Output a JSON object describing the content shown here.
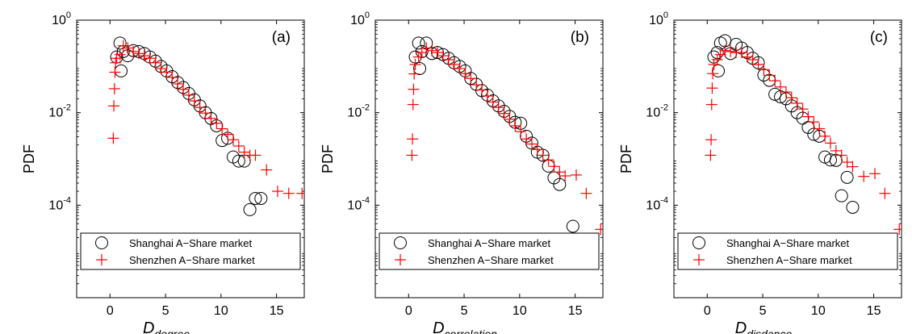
{
  "chart_data": [
    {
      "type": "scatter",
      "panel_label": "(a)",
      "ylabel": "PDF",
      "xlabel_main": "D",
      "xlabel_sub": "degree",
      "xlim": [
        -3,
        17.5
      ],
      "ylim_log10": [
        -6,
        0
      ],
      "log_y": true,
      "x_ticks": [
        "0",
        "5",
        "10",
        "15"
      ],
      "y_ticks": [
        {
          "base": "10",
          "exp": "0"
        },
        {
          "base": "10",
          "exp": "-2"
        },
        {
          "base": "10",
          "exp": "-4"
        }
      ],
      "legend": [
        "Shanghai A−Share market",
        "Shenzhen A−Share market"
      ],
      "series": [
        {
          "name": "Shanghai A−Share market",
          "marker": "circle",
          "color": "#000000",
          "x": [
            0.6,
            0.9,
            1.2,
            1.6,
            2.1,
            2.6,
            3.1,
            3.6,
            4.1,
            4.6,
            5.1,
            5.6,
            6.1,
            6.6,
            7.1,
            7.6,
            8.1,
            8.6,
            9.1,
            9.6,
            10.1,
            10.6,
            11.1,
            11.6,
            12.1,
            12.6,
            13.1,
            13.6,
            1.0
          ],
          "y": [
            0.16,
            0.32,
            0.21,
            0.17,
            0.22,
            0.21,
            0.19,
            0.16,
            0.13,
            0.1,
            0.08,
            0.06,
            0.045,
            0.035,
            0.026,
            0.019,
            0.014,
            0.01,
            0.0075,
            0.0052,
            0.0025,
            0.0028,
            0.0011,
            0.0009,
            0.0009,
            8e-05,
            0.00014,
            0.00014,
            0.08
          ]
        },
        {
          "name": "Shenzhen A−Share market",
          "marker": "plus",
          "color": "#ff0000",
          "x": [
            0.3,
            0.35,
            0.4,
            0.45,
            0.5,
            0.6,
            0.9,
            1.2,
            1.6,
            2.1,
            2.6,
            3.1,
            3.6,
            4.1,
            4.6,
            5.1,
            5.6,
            6.1,
            6.6,
            7.1,
            7.6,
            8.1,
            8.6,
            9.1,
            9.6,
            10.1,
            10.6,
            11.1,
            11.6,
            12.1,
            12.6,
            13.1,
            14.1,
            15.1,
            16.1,
            17.3
          ],
          "y": [
            0.0028,
            0.014,
            0.033,
            0.075,
            0.12,
            0.15,
            0.18,
            0.28,
            0.25,
            0.21,
            0.19,
            0.17,
            0.15,
            0.12,
            0.09,
            0.075,
            0.058,
            0.042,
            0.032,
            0.024,
            0.018,
            0.013,
            0.0098,
            0.0075,
            0.0059,
            0.0045,
            0.0034,
            0.0026,
            0.0019,
            0.0014,
            0.0012,
            0.0012,
            0.00058,
            0.0002,
            0.00018,
            0.00018
          ]
        }
      ]
    },
    {
      "type": "scatter",
      "panel_label": "(b)",
      "ylabel": "PDF",
      "xlabel_main": "D",
      "xlabel_sub": "correlation",
      "xlim": [
        -3,
        17.5
      ],
      "ylim_log10": [
        -6,
        0
      ],
      "log_y": true,
      "x_ticks": [
        "0",
        "5",
        "10",
        "15"
      ],
      "y_ticks": [
        {
          "base": "10",
          "exp": "0"
        },
        {
          "base": "10",
          "exp": "-2"
        },
        {
          "base": "10",
          "exp": "-4"
        }
      ],
      "legend": [
        "Shanghai A−Share market",
        "Shenzhen A−Share market"
      ],
      "series": [
        {
          "name": "Shanghai A−Share market",
          "marker": "circle",
          "color": "#000000",
          "x": [
            0.6,
            0.9,
            1.2,
            1.6,
            2.1,
            2.6,
            3.1,
            3.6,
            4.1,
            4.6,
            5.1,
            5.6,
            6.1,
            6.6,
            7.1,
            7.6,
            8.1,
            8.6,
            9.1,
            9.6,
            10.1,
            10.6,
            11.1,
            11.6,
            12.1,
            12.6,
            13.1,
            13.6,
            14.8,
            1.0
          ],
          "y": [
            0.16,
            0.32,
            0.21,
            0.32,
            0.19,
            0.2,
            0.18,
            0.15,
            0.12,
            0.1,
            0.08,
            0.055,
            0.041,
            0.03,
            0.024,
            0.018,
            0.014,
            0.0107,
            0.0083,
            0.0062,
            0.0059,
            0.0031,
            0.0022,
            0.0014,
            0.0012,
            0.0007,
            0.00039,
            0.00028,
            3.5e-05,
            0.09
          ]
        },
        {
          "name": "Shenzhen A−Share market",
          "marker": "plus",
          "color": "#ff0000",
          "x": [
            0.3,
            0.35,
            0.4,
            0.45,
            0.5,
            0.6,
            0.9,
            1.2,
            1.6,
            2.1,
            2.6,
            3.1,
            3.6,
            4.1,
            4.6,
            5.1,
            5.6,
            6.1,
            6.6,
            7.1,
            7.6,
            8.1,
            8.6,
            9.1,
            9.6,
            10.1,
            10.6,
            11.1,
            11.6,
            12.1,
            12.6,
            13.1,
            13.6,
            14.1,
            15.1,
            16.0,
            17.3
          ],
          "y": [
            0.0012,
            0.0027,
            0.015,
            0.032,
            0.069,
            0.11,
            0.16,
            0.2,
            0.25,
            0.22,
            0.2,
            0.17,
            0.14,
            0.11,
            0.09,
            0.07,
            0.055,
            0.04,
            0.031,
            0.023,
            0.017,
            0.013,
            0.0096,
            0.0072,
            0.0052,
            0.0039,
            0.0027,
            0.0021,
            0.0016,
            0.0012,
            0.00095,
            0.00069,
            0.00052,
            0.00043,
            0.00045,
            0.00018,
            3e-05
          ]
        }
      ]
    },
    {
      "type": "scatter",
      "panel_label": "(c)",
      "ylabel": "PDF",
      "xlabel_main": "D",
      "xlabel_sub": "disdance",
      "xlim": [
        -3,
        17.5
      ],
      "ylim_log10": [
        -6,
        0
      ],
      "log_y": true,
      "x_ticks": [
        "0",
        "5",
        "10",
        "15"
      ],
      "y_ticks": [
        {
          "base": "10",
          "exp": "0"
        },
        {
          "base": "10",
          "exp": "-2"
        },
        {
          "base": "10",
          "exp": "-4"
        }
      ],
      "legend": [
        "Shanghai A−Share market",
        "Shenzhen A−Share market"
      ],
      "series": [
        {
          "name": "Shanghai A−Share market",
          "marker": "circle",
          "color": "#000000",
          "x": [
            0.6,
            0.9,
            1.2,
            1.6,
            2.1,
            2.6,
            3.1,
            3.6,
            4.1,
            4.6,
            5.1,
            5.6,
            6.1,
            6.6,
            7.1,
            7.6,
            8.1,
            8.6,
            9.1,
            9.6,
            10.1,
            10.6,
            11.1,
            11.6,
            12.1,
            12.6,
            13.1,
            1.0
          ],
          "y": [
            0.16,
            0.2,
            0.32,
            0.36,
            0.19,
            0.3,
            0.25,
            0.2,
            0.15,
            0.12,
            0.065,
            0.05,
            0.025,
            0.022,
            0.02,
            0.014,
            0.01,
            0.0076,
            0.0048,
            0.0034,
            0.0031,
            0.0011,
            0.00095,
            0.00093,
            0.00016,
            0.0004,
            9e-05,
            0.08
          ]
        },
        {
          "name": "Shenzhen A−Share market",
          "marker": "plus",
          "color": "#ff0000",
          "x": [
            0.3,
            0.35,
            0.4,
            0.45,
            0.5,
            0.6,
            0.9,
            1.2,
            1.6,
            2.1,
            2.6,
            3.1,
            3.6,
            4.1,
            4.6,
            5.1,
            5.6,
            6.1,
            6.6,
            7.1,
            7.6,
            8.1,
            8.6,
            9.1,
            9.6,
            10.1,
            10.6,
            11.1,
            11.6,
            12.1,
            12.6,
            13.1,
            14.1,
            15.1,
            16.0,
            17.3
          ],
          "y": [
            0.0012,
            0.0026,
            0.015,
            0.034,
            0.07,
            0.11,
            0.14,
            0.18,
            0.22,
            0.21,
            0.2,
            0.2,
            0.16,
            0.14,
            0.11,
            0.085,
            0.064,
            0.049,
            0.036,
            0.028,
            0.021,
            0.016,
            0.012,
            0.0082,
            0.0063,
            0.0045,
            0.0031,
            0.0022,
            0.0015,
            0.0012,
            0.00085,
            0.00068,
            0.00042,
            0.00048,
            0.00018,
            3e-05
          ]
        }
      ]
    }
  ]
}
